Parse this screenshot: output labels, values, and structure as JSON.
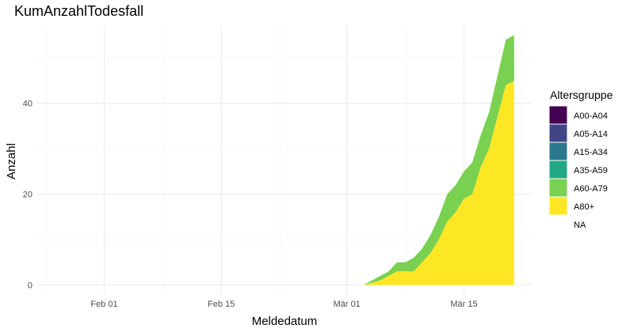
{
  "chart_data": {
    "type": "area",
    "stacked": true,
    "title": "KumAnzahlTodesfall",
    "xlabel": "Meldedatum",
    "ylabel": "Anzahl",
    "x_tick_labels": [
      "Feb 01",
      "Feb 15",
      "Mär 01",
      "Mär 15"
    ],
    "x_tick_dates": [
      "2020-02-01",
      "2020-02-15",
      "2020-03-01",
      "2020-03-15"
    ],
    "y_ticks": [
      0,
      20,
      40
    ],
    "ylim": [
      -2,
      57
    ],
    "xlim": [
      "2020-01-24",
      "2020-03-23"
    ],
    "grid": true,
    "legend": {
      "title": "Altersgruppe",
      "position": "right",
      "entries": [
        "A00-A04",
        "A05-A14",
        "A15-A34",
        "A35-A59",
        "A60-A79",
        "A80+",
        "NA"
      ]
    },
    "colors": {
      "A00-A04": "#440154",
      "A05-A14": "#414487",
      "A15-A34": "#2a788e",
      "A35-A59": "#22a884",
      "A60-A79": "#7ad151",
      "A80+": "#fde725",
      "NA": "#ffffff"
    },
    "x": [
      "2020-01-28",
      "2020-03-02",
      "2020-03-03",
      "2020-03-04",
      "2020-03-05",
      "2020-03-06",
      "2020-03-07",
      "2020-03-08",
      "2020-03-09",
      "2020-03-10",
      "2020-03-11",
      "2020-03-12",
      "2020-03-13",
      "2020-03-14",
      "2020-03-15",
      "2020-03-16",
      "2020-03-17",
      "2020-03-18",
      "2020-03-19",
      "2020-03-20",
      "2020-03-21"
    ],
    "series": [
      {
        "name": "A80+",
        "values": [
          0,
          0,
          0,
          0.5,
          1,
          2,
          3,
          3,
          3,
          5,
          7,
          10,
          14,
          16,
          19,
          20,
          26,
          30,
          37,
          44,
          45
        ]
      },
      {
        "name": "A60-A79",
        "values": [
          0,
          0,
          0,
          0.5,
          1,
          1,
          2,
          2,
          3,
          3,
          4,
          5,
          6,
          6,
          6,
          7,
          7,
          8,
          9,
          10,
          10
        ]
      }
    ]
  }
}
